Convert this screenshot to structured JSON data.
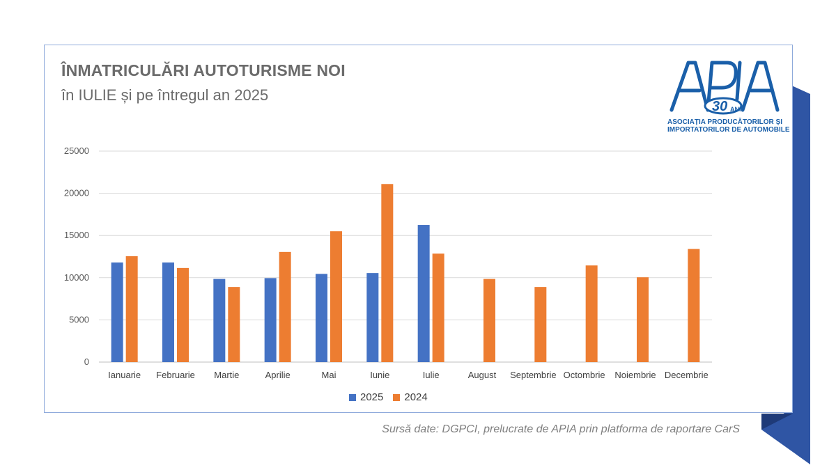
{
  "title": "ÎNMATRICULĂRI AUTOTURISME NOI",
  "subtitle": "în IULIE și pe întregul an 2025",
  "logo": {
    "text": "APIA",
    "badge": "30",
    "badge_suffix": "ANI",
    "line1": "ASOCIAȚIA PRODUCĂTORILOR ȘI",
    "line2": "IMPORTATORILOR DE AUTOMOBILE",
    "color": "#1a5fa9"
  },
  "source": "Sursă date: DGPCI, prelucrate de APIA prin platforma de raportare CarS",
  "colors": {
    "series_2025": "#4472c4",
    "series_2024": "#ed7d31",
    "card_border": "#8eaadb",
    "ribbon": "#2f55a4",
    "ribbon_dark": "#1e3a78"
  },
  "chart_data": {
    "type": "bar",
    "categories": [
      "Ianuarie",
      "Februarie",
      "Martie",
      "Aprilie",
      "Mai",
      "Iunie",
      "Iulie",
      "August",
      "Septembrie",
      "Octombrie",
      "Noiembrie",
      "Decembrie"
    ],
    "series": [
      {
        "name": "2025",
        "color": "#4472c4",
        "values": [
          11800,
          11800,
          9850,
          9950,
          10450,
          10550,
          16250,
          null,
          null,
          null,
          null,
          null
        ]
      },
      {
        "name": "2024",
        "color": "#ed7d31",
        "values": [
          12550,
          11150,
          8900,
          13050,
          15500,
          21100,
          12850,
          9850,
          8900,
          11450,
          10050,
          13400
        ]
      }
    ],
    "yticks": [
      0,
      5000,
      10000,
      15000,
      20000,
      25000
    ],
    "ylim": [
      0,
      25000
    ],
    "grid": true,
    "legend": "bottom"
  }
}
